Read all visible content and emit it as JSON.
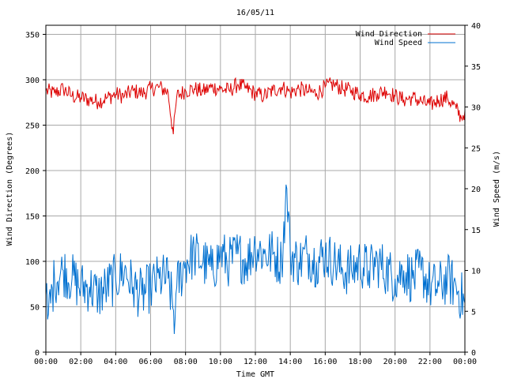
{
  "chart_data": {
    "type": "line",
    "title": "16/05/11",
    "xlabel": "Time GMT",
    "ylabel_left": "Wind Direction (Degrees)",
    "ylabel_right": "Wind Speed (m/s)",
    "x_ticks": [
      "00:00",
      "02:00",
      "04:00",
      "06:00",
      "08:00",
      "10:00",
      "12:00",
      "14:00",
      "16:00",
      "18:00",
      "20:00",
      "22:00",
      "00:00"
    ],
    "xlim_hours": [
      0,
      24
    ],
    "ylim_left": [
      0,
      360
    ],
    "ylim_right": [
      0,
      40
    ],
    "yticks_left": [
      0,
      50,
      100,
      150,
      200,
      250,
      300,
      350
    ],
    "yticks_right": [
      0,
      5,
      10,
      15,
      20,
      25,
      30,
      35,
      40
    ],
    "grid": true,
    "legend_position": "top-right",
    "series": [
      {
        "name": "Wind Direction",
        "axis": "left",
        "color": "#dd0000",
        "x_hours": [
          0,
          0.5,
          1,
          1.5,
          2,
          2.5,
          3,
          3.5,
          4,
          4.5,
          5,
          5.5,
          6,
          6.5,
          7,
          7.3,
          7.5,
          8,
          8.5,
          9,
          9.5,
          10,
          10.5,
          11,
          11.5,
          12,
          12.5,
          13,
          13.5,
          14,
          14.5,
          15,
          15.5,
          16,
          16.5,
          17,
          17.5,
          18,
          18.5,
          19,
          19.5,
          20,
          20.5,
          21,
          21.5,
          22,
          22.5,
          23,
          23.5,
          23.8,
          24
        ],
        "values": [
          288,
          285,
          290,
          282,
          280,
          278,
          276,
          280,
          284,
          282,
          288,
          285,
          290,
          292,
          286,
          240,
          282,
          288,
          290,
          287,
          292,
          290,
          288,
          295,
          290,
          285,
          282,
          288,
          292,
          286,
          290,
          287,
          285,
          292,
          295,
          290,
          288,
          284,
          282,
          285,
          288,
          282,
          278,
          280,
          276,
          272,
          278,
          280,
          268,
          258,
          266
        ]
      },
      {
        "name": "Wind Speed",
        "axis": "right",
        "color": "#0070d0",
        "x_hours": [
          0,
          0.1,
          0.5,
          1,
          1.5,
          2,
          2.5,
          3,
          3.5,
          4,
          4.5,
          5,
          5.5,
          6,
          6.5,
          7,
          7.4,
          7.5,
          8,
          8.5,
          9,
          9.5,
          10,
          10.5,
          11,
          11.5,
          12,
          12.5,
          13,
          13.5,
          13.8,
          14,
          14.5,
          15,
          15.5,
          16,
          16.5,
          17,
          17.5,
          18,
          18.5,
          19,
          19.5,
          20,
          20.5,
          21,
          21.5,
          22,
          22.5,
          23,
          23.5,
          24
        ],
        "values": [
          7,
          4,
          9,
          10,
          9,
          8,
          8,
          7,
          8,
          9,
          10,
          8,
          7,
          8,
          9,
          9,
          4,
          8,
          11,
          12,
          11,
          10,
          12,
          11,
          12,
          11,
          13,
          12,
          12,
          11,
          20,
          12,
          11,
          12,
          11,
          12,
          11,
          10,
          10,
          11,
          10,
          11,
          10,
          9,
          10,
          9,
          10,
          8,
          8,
          9,
          8,
          6
        ]
      }
    ]
  }
}
